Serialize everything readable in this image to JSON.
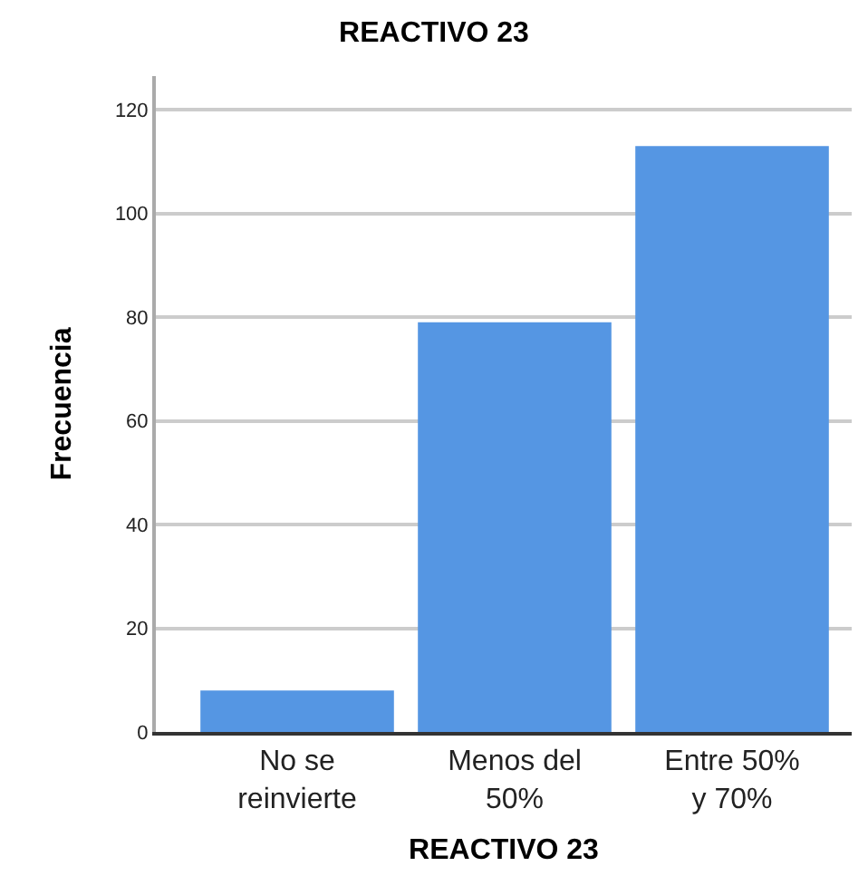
{
  "chart_data": {
    "type": "bar",
    "title": "REACTIVO 23",
    "xlabel": "REACTIVO 23",
    "ylabel": "Frecuencia",
    "categories": [
      "No se\nreinvierte",
      "Menos del\n50%",
      "Entre 50%\ny 70%"
    ],
    "values": [
      8,
      79,
      113
    ],
    "color": "#5596e3",
    "ylim": [
      0,
      126.5
    ],
    "yticks": [
      0,
      20,
      40,
      60,
      80,
      100,
      120
    ],
    "grid": "y",
    "legend": false
  }
}
